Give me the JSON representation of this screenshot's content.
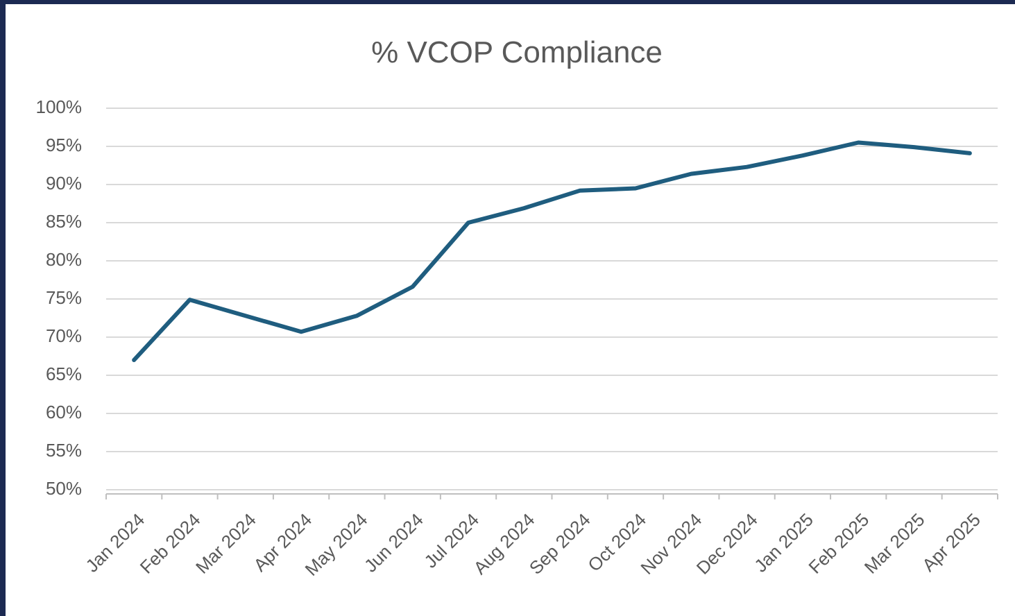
{
  "chart_data": {
    "type": "line",
    "title": "% VCOP Compliance",
    "categories": [
      "Jan 2024",
      "Feb 2024",
      "Mar 2024",
      "Apr 2024",
      "May 2024",
      "Jun 2024",
      "Jul 2024",
      "Aug 2024",
      "Sep 2024",
      "Oct 2024",
      "Nov 2024",
      "Dec 2024",
      "Jan 2025",
      "Feb 2025",
      "Mar 2025",
      "Apr 2025"
    ],
    "values": [
      67,
      74.9,
      72.8,
      70.7,
      72.8,
      76.6,
      85,
      86.9,
      89.2,
      89.5,
      91.4,
      92.3,
      93.8,
      95.5,
      94.9,
      94.1
    ],
    "color": "#1f5d7f",
    "ylim": [
      50,
      100
    ],
    "yticks": [
      {
        "value": 50,
        "label": "50%"
      },
      {
        "value": 55,
        "label": "55%"
      },
      {
        "value": 60,
        "label": "60%"
      },
      {
        "value": 65,
        "label": "65%"
      },
      {
        "value": 70,
        "label": "70%"
      },
      {
        "value": 75,
        "label": "75%"
      },
      {
        "value": 80,
        "label": "80%"
      },
      {
        "value": 85,
        "label": "85%"
      },
      {
        "value": 90,
        "label": "90%"
      },
      {
        "value": 95,
        "label": "95%"
      },
      {
        "value": 100,
        "label": "100%"
      }
    ],
    "grid": true
  }
}
